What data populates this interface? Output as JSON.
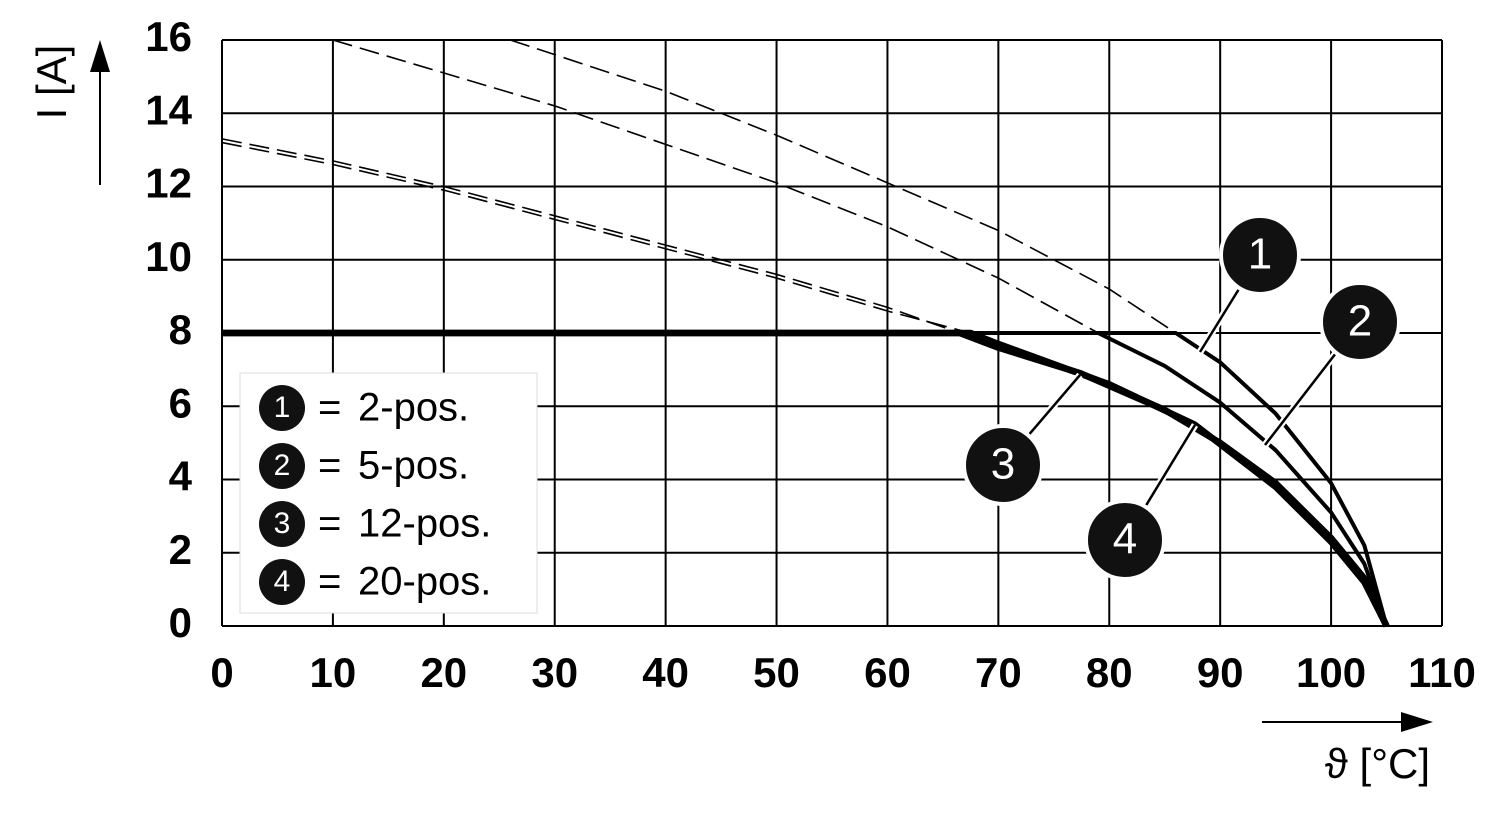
{
  "chart_data": {
    "type": "line",
    "x_label": "ϑ [°C]",
    "y_label": "I [A]",
    "xlim": [
      0,
      110
    ],
    "xticks": [
      0,
      10,
      20,
      30,
      40,
      50,
      60,
      70,
      80,
      90,
      100,
      110
    ],
    "ylim": [
      0,
      16
    ],
    "yticks": [
      0,
      2,
      4,
      6,
      8,
      10,
      12,
      14,
      16
    ],
    "grid": true,
    "legend": "lower left",
    "legend_separator": "=",
    "series": [
      {
        "name": "2-pos.",
        "label": "1",
        "color": "#000000",
        "x": [
          0,
          86,
          90,
          95,
          100,
          103,
          105
        ],
        "values": [
          8,
          8,
          7.2,
          5.8,
          3.9,
          2.2,
          0
        ],
        "dashed": {
          "x": [
            26,
            40,
            50,
            60,
            70,
            80,
            86
          ],
          "values": [
            16,
            14.6,
            13.4,
            12.1,
            10.8,
            9.2,
            8
          ]
        }
      },
      {
        "name": "5-pos.",
        "label": "2",
        "color": "#000000",
        "x": [
          0,
          79,
          85,
          90,
          95,
          100,
          103,
          105
        ],
        "values": [
          8,
          8,
          7.1,
          6.1,
          4.8,
          3.1,
          1.7,
          0
        ],
        "dashed": {
          "x": [
            10,
            30,
            50,
            60,
            70,
            79
          ],
          "values": [
            16,
            14.2,
            12.1,
            10.9,
            9.5,
            8
          ]
        }
      },
      {
        "name": "12-pos.",
        "label": "3",
        "color": "#000000",
        "x": [
          0,
          66.5,
          70,
          77.4,
          85,
          90,
          95,
          100,
          103,
          105
        ],
        "values": [
          8,
          8,
          7.6,
          6.9,
          5.9,
          5,
          3.9,
          2.4,
          1.3,
          0
        ],
        "dashed": {
          "x": [
            0,
            10,
            20,
            30,
            40,
            50,
            60,
            66.5
          ],
          "values": [
            13.3,
            12.7,
            12,
            11.2,
            10.4,
            9.6,
            8.7,
            8
          ]
        }
      },
      {
        "name": "20-pos.",
        "label": "4",
        "color": "#000000",
        "x": [
          0,
          67.5,
          70,
          80,
          87.7,
          95,
          100,
          103,
          105
        ],
        "values": [
          8,
          8,
          7.7,
          6.6,
          5.5,
          3.8,
          2.3,
          1.2,
          0
        ],
        "dashed": {
          "x": [
            0,
            10,
            20,
            30,
            40,
            50,
            60,
            67.5
          ],
          "values": [
            13.2,
            12.6,
            11.9,
            11.1,
            10.3,
            9.5,
            8.6,
            8
          ]
        }
      }
    ]
  }
}
